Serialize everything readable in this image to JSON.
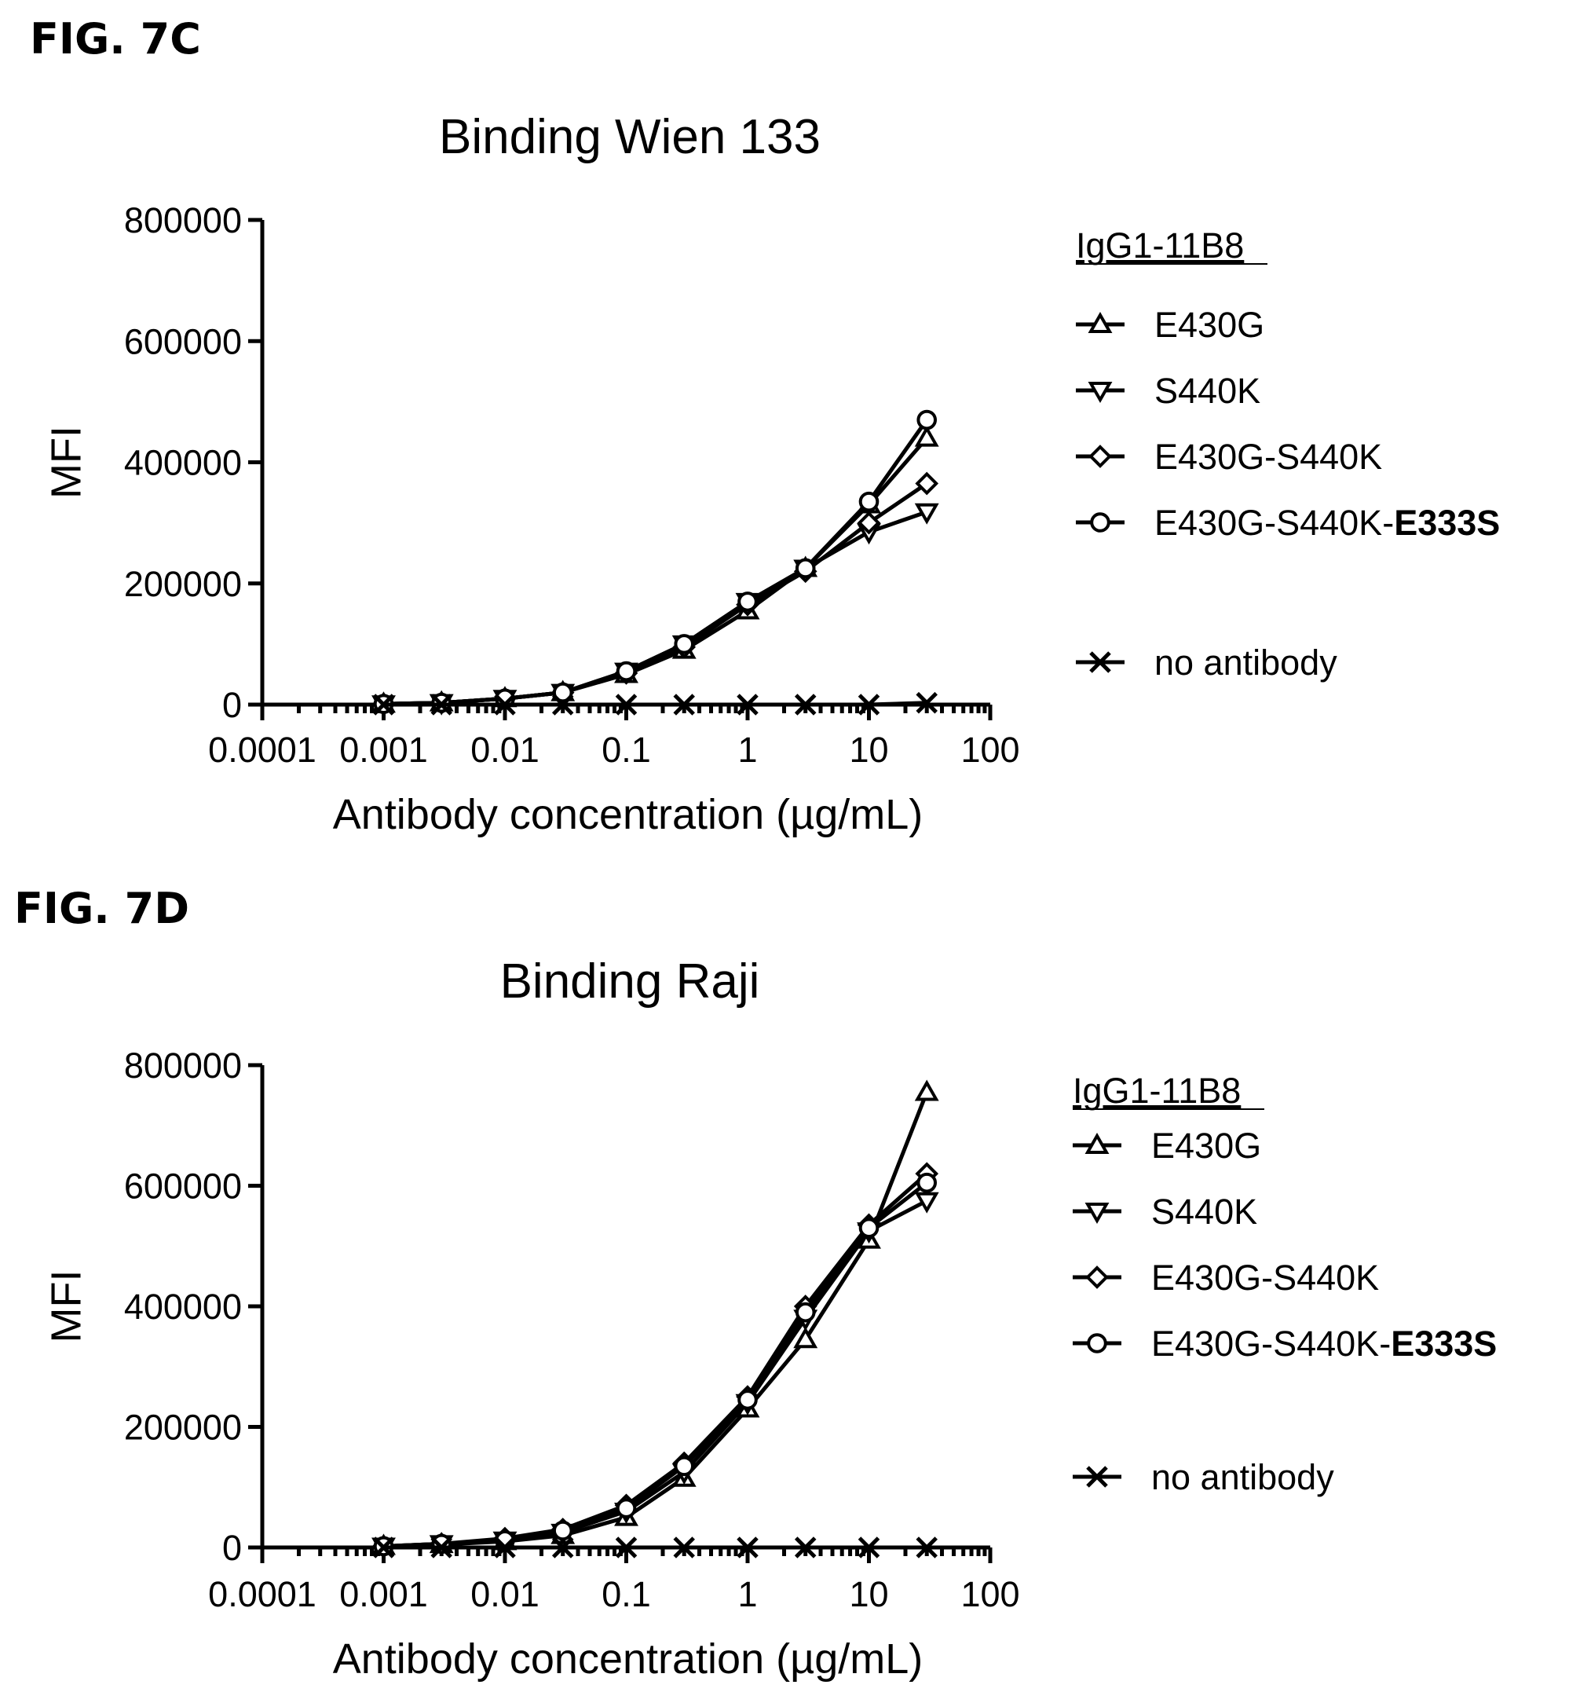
{
  "chart_data": [
    {
      "figure_label": "FIG. 7C",
      "type": "line",
      "title": "Binding Wien 133",
      "xlabel": "Antibody concentration (µg/mL)",
      "ylabel": "MFI",
      "x_scale": "log",
      "xlim": [
        0.0001,
        100
      ],
      "ylim": [
        0,
        800000
      ],
      "x_ticks": [
        0.0001,
        0.001,
        0.01,
        0.1,
        1,
        10,
        100
      ],
      "x_tick_labels": [
        "0.0001",
        "0.001",
        "0.01",
        "0.1",
        "1",
        "10",
        "100"
      ],
      "y_ticks": [
        0,
        200000,
        400000,
        600000,
        800000
      ],
      "y_tick_labels": [
        "0",
        "200000",
        "400000",
        "600000",
        "800000"
      ],
      "legend_title": "IgG1-11B8",
      "legend_position": "right",
      "x": [
        0.001,
        0.003,
        0.01,
        0.03,
        0.1,
        0.3,
        1,
        3,
        10,
        30
      ],
      "series": [
        {
          "name": "E430G",
          "marker": "triangle-up",
          "values": [
            1000,
            3000,
            10000,
            20000,
            50000,
            90000,
            155000,
            225000,
            330000,
            440000
          ]
        },
        {
          "name": "S440K",
          "marker": "triangle-down",
          "values": [
            1000,
            3000,
            10000,
            20000,
            55000,
            100000,
            170000,
            225000,
            285000,
            318000
          ]
        },
        {
          "name": "E430G-S440K",
          "marker": "diamond",
          "values": [
            1000,
            3000,
            10000,
            20000,
            52000,
            95000,
            165000,
            220000,
            300000,
            365000
          ]
        },
        {
          "name": "E430G-S440K-",
          "name_bold_suffix": "E333S",
          "marker": "circle",
          "values": [
            1000,
            3000,
            10000,
            20000,
            55000,
            100000,
            170000,
            225000,
            335000,
            470000
          ]
        },
        {
          "name": "no antibody",
          "marker": "x",
          "values": [
            0,
            0,
            0,
            0,
            0,
            0,
            0,
            0,
            0,
            3000
          ]
        }
      ]
    },
    {
      "figure_label": "FIG. 7D",
      "type": "line",
      "title": "Binding Raji",
      "xlabel": "Antibody concentration (µg/mL)",
      "ylabel": "MFI",
      "x_scale": "log",
      "xlim": [
        0.0001,
        100
      ],
      "ylim": [
        0,
        800000
      ],
      "x_ticks": [
        0.0001,
        0.001,
        0.01,
        0.1,
        1,
        10,
        100
      ],
      "x_tick_labels": [
        "0.0001",
        "0.001",
        "0.01",
        "0.1",
        "1",
        "10",
        "100"
      ],
      "y_ticks": [
        0,
        200000,
        400000,
        600000,
        800000
      ],
      "y_tick_labels": [
        "0",
        "200000",
        "400000",
        "600000",
        "800000"
      ],
      "legend_title": "IgG1-11B8",
      "legend_position": "right",
      "x": [
        0.001,
        0.003,
        0.01,
        0.03,
        0.1,
        0.3,
        1,
        3,
        10,
        30
      ],
      "series": [
        {
          "name": "E430G",
          "marker": "triangle-up",
          "values": [
            2000,
            5000,
            10000,
            20000,
            50000,
            115000,
            230000,
            345000,
            510000,
            755000
          ]
        },
        {
          "name": "S440K",
          "marker": "triangle-down",
          "values": [
            2000,
            6000,
            12000,
            25000,
            60000,
            125000,
            240000,
            380000,
            525000,
            575000
          ]
        },
        {
          "name": "E430G-S440K",
          "marker": "diamond",
          "values": [
            2000,
            6000,
            15000,
            30000,
            70000,
            140000,
            250000,
            400000,
            535000,
            620000
          ]
        },
        {
          "name": "E430G-S440K-",
          "name_bold_suffix": "E333S",
          "marker": "circle",
          "values": [
            2000,
            6000,
            12000,
            28000,
            65000,
            135000,
            245000,
            390000,
            530000,
            605000
          ]
        },
        {
          "name": "no antibody",
          "marker": "x",
          "values": [
            0,
            0,
            0,
            0,
            0,
            0,
            0,
            0,
            0,
            0
          ]
        }
      ]
    }
  ]
}
